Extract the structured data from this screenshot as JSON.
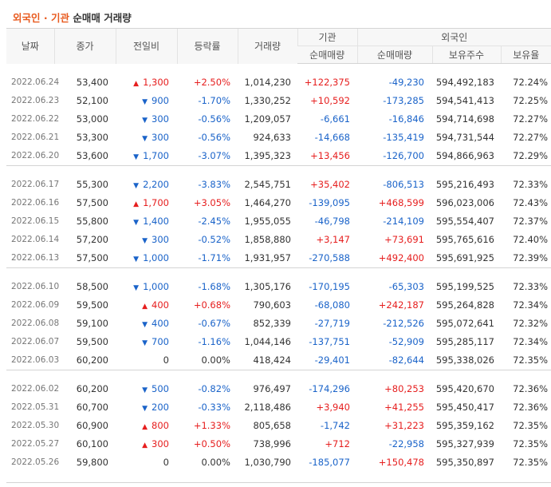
{
  "title": {
    "part1": "외국인",
    "sep": " · ",
    "part2": "기관",
    "part3": " 순매매 거래량"
  },
  "headers": {
    "date": "날짜",
    "close": "종가",
    "change": "전일비",
    "rate": "등락률",
    "volume": "거래량",
    "institution": "기관",
    "inst_net": "순매매량",
    "foreign": "외국인",
    "foreign_net": "순매매량",
    "foreign_hold": "보유주수",
    "foreign_rate": "보유율"
  },
  "groups": [
    [
      {
        "date": "2022.06.24",
        "close": "53,400",
        "dir": "up",
        "change": "1,300",
        "rate": "+2.50%",
        "volume": "1,014,230",
        "inst": "+122,375",
        "foreign_net": "-49,230",
        "hold": "594,492,183",
        "hold_rate": "72.24%"
      },
      {
        "date": "2022.06.23",
        "close": "52,100",
        "dir": "down",
        "change": "900",
        "rate": "-1.70%",
        "volume": "1,330,252",
        "inst": "+10,592",
        "foreign_net": "-173,285",
        "hold": "594,541,413",
        "hold_rate": "72.25%"
      },
      {
        "date": "2022.06.22",
        "close": "53,000",
        "dir": "down",
        "change": "300",
        "rate": "-0.56%",
        "volume": "1,209,057",
        "inst": "-6,661",
        "foreign_net": "-16,846",
        "hold": "594,714,698",
        "hold_rate": "72.27%"
      },
      {
        "date": "2022.06.21",
        "close": "53,300",
        "dir": "down",
        "change": "300",
        "rate": "-0.56%",
        "volume": "924,633",
        "inst": "-14,668",
        "foreign_net": "-135,419",
        "hold": "594,731,544",
        "hold_rate": "72.27%"
      },
      {
        "date": "2022.06.20",
        "close": "53,600",
        "dir": "down",
        "change": "1,700",
        "rate": "-3.07%",
        "volume": "1,395,323",
        "inst": "+13,456",
        "foreign_net": "-126,700",
        "hold": "594,866,963",
        "hold_rate": "72.29%"
      }
    ],
    [
      {
        "date": "2022.06.17",
        "close": "55,300",
        "dir": "down",
        "change": "2,200",
        "rate": "-3.83%",
        "volume": "2,545,751",
        "inst": "+35,402",
        "foreign_net": "-806,513",
        "hold": "595,216,493",
        "hold_rate": "72.33%"
      },
      {
        "date": "2022.06.16",
        "close": "57,500",
        "dir": "up",
        "change": "1,700",
        "rate": "+3.05%",
        "volume": "1,464,270",
        "inst": "-139,095",
        "foreign_net": "+468,599",
        "hold": "596,023,006",
        "hold_rate": "72.43%"
      },
      {
        "date": "2022.06.15",
        "close": "55,800",
        "dir": "down",
        "change": "1,400",
        "rate": "-2.45%",
        "volume": "1,955,055",
        "inst": "-46,798",
        "foreign_net": "-214,109",
        "hold": "595,554,407",
        "hold_rate": "72.37%"
      },
      {
        "date": "2022.06.14",
        "close": "57,200",
        "dir": "down",
        "change": "300",
        "rate": "-0.52%",
        "volume": "1,858,880",
        "inst": "+3,147",
        "foreign_net": "+73,691",
        "hold": "595,765,616",
        "hold_rate": "72.40%"
      },
      {
        "date": "2022.06.13",
        "close": "57,500",
        "dir": "down",
        "change": "1,000",
        "rate": "-1.71%",
        "volume": "1,931,957",
        "inst": "-270,588",
        "foreign_net": "+492,400",
        "hold": "595,691,925",
        "hold_rate": "72.39%"
      }
    ],
    [
      {
        "date": "2022.06.10",
        "close": "58,500",
        "dir": "down",
        "change": "1,000",
        "rate": "-1.68%",
        "volume": "1,305,176",
        "inst": "-170,195",
        "foreign_net": "-65,303",
        "hold": "595,199,525",
        "hold_rate": "72.33%"
      },
      {
        "date": "2022.06.09",
        "close": "59,500",
        "dir": "up",
        "change": "400",
        "rate": "+0.68%",
        "volume": "790,603",
        "inst": "-68,080",
        "foreign_net": "+242,187",
        "hold": "595,264,828",
        "hold_rate": "72.34%"
      },
      {
        "date": "2022.06.08",
        "close": "59,100",
        "dir": "down",
        "change": "400",
        "rate": "-0.67%",
        "volume": "852,339",
        "inst": "-27,719",
        "foreign_net": "-212,526",
        "hold": "595,072,641",
        "hold_rate": "72.32%"
      },
      {
        "date": "2022.06.07",
        "close": "59,500",
        "dir": "down",
        "change": "700",
        "rate": "-1.16%",
        "volume": "1,044,146",
        "inst": "-137,751",
        "foreign_net": "-52,909",
        "hold": "595,285,117",
        "hold_rate": "72.34%"
      },
      {
        "date": "2022.06.03",
        "close": "60,200",
        "dir": "none",
        "change": "0",
        "rate": "0.00%",
        "volume": "418,424",
        "inst": "-29,401",
        "foreign_net": "-82,644",
        "hold": "595,338,026",
        "hold_rate": "72.35%"
      }
    ],
    [
      {
        "date": "2022.06.02",
        "close": "60,200",
        "dir": "down",
        "change": "500",
        "rate": "-0.82%",
        "volume": "976,497",
        "inst": "-174,296",
        "foreign_net": "+80,253",
        "hold": "595,420,670",
        "hold_rate": "72.36%"
      },
      {
        "date": "2022.05.31",
        "close": "60,700",
        "dir": "down",
        "change": "200",
        "rate": "-0.33%",
        "volume": "2,118,486",
        "inst": "+3,940",
        "foreign_net": "+41,255",
        "hold": "595,450,417",
        "hold_rate": "72.36%"
      },
      {
        "date": "2022.05.30",
        "close": "60,900",
        "dir": "up",
        "change": "800",
        "rate": "+1.33%",
        "volume": "805,658",
        "inst": "-1,742",
        "foreign_net": "+31,223",
        "hold": "595,359,162",
        "hold_rate": "72.35%"
      },
      {
        "date": "2022.05.27",
        "close": "60,100",
        "dir": "up",
        "change": "300",
        "rate": "+0.50%",
        "volume": "738,996",
        "inst": "+712",
        "foreign_net": "-22,958",
        "hold": "595,327,939",
        "hold_rate": "72.35%"
      },
      {
        "date": "2022.05.26",
        "close": "59,800",
        "dir": "none",
        "change": "0",
        "rate": "0.00%",
        "volume": "1,030,790",
        "inst": "-185,077",
        "foreign_net": "+150,478",
        "hold": "595,350,897",
        "hold_rate": "72.35%"
      }
    ]
  ],
  "colors": {
    "title_accent": "#e85a1e",
    "up": "#e61e1e",
    "down": "#1a63c9",
    "header_bg": "#f7f7f7"
  },
  "icons": {
    "up": "triangle-up-icon",
    "down": "triangle-down-icon"
  }
}
